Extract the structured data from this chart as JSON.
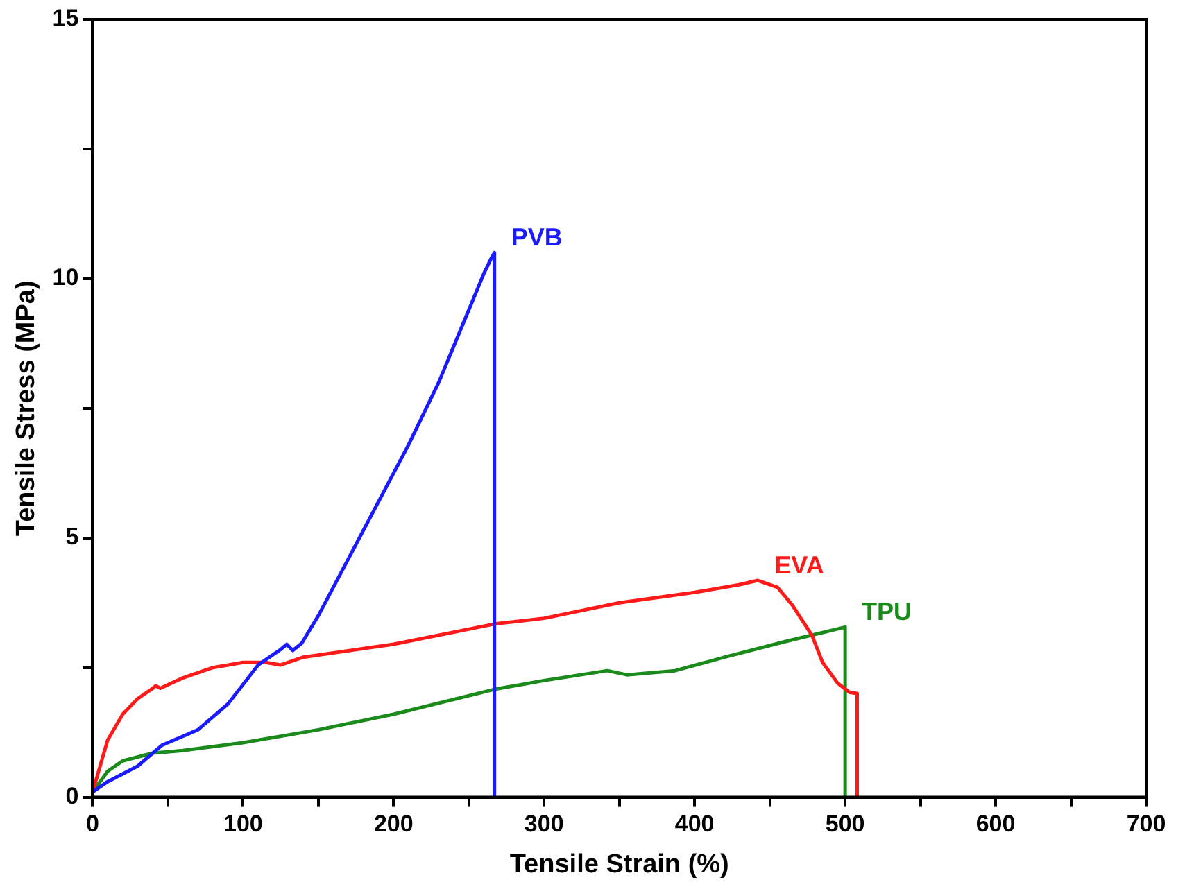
{
  "chart_data": {
    "type": "line",
    "xlabel": "Tensile Strain (%)",
    "ylabel": "Tensile Stress (MPa)",
    "xlim": [
      0,
      700
    ],
    "ylim": [
      0,
      15
    ],
    "xticks": [
      0,
      {
        "value": 50,
        "label": null
      },
      100,
      {
        "value": 150,
        "label": null
      },
      200,
      {
        "value": 250,
        "label": null
      },
      300,
      {
        "value": 350,
        "label": null
      },
      400,
      {
        "value": 450,
        "label": null
      },
      500,
      {
        "value": 550,
        "label": null
      },
      600,
      {
        "value": 650,
        "label": null
      },
      700
    ],
    "yticks": [
      0,
      {
        "value": 2.5,
        "label": null
      },
      5,
      {
        "value": 7.5,
        "label": null
      },
      10,
      {
        "value": 12.5,
        "label": null
      },
      15
    ],
    "grid": false,
    "legend": false,
    "marker": "none",
    "line_style": "solid",
    "series": [
      {
        "name": "PVB",
        "color": "#1a1aff",
        "x": [
          0,
          10,
          30,
          46,
          70,
          90,
          110,
          125,
          129,
          133,
          139,
          150,
          170,
          190,
          210,
          230,
          250,
          260,
          265,
          267,
          267
        ],
        "values": [
          0.1,
          0.3,
          0.6,
          1.0,
          1.3,
          1.8,
          2.55,
          2.85,
          2.95,
          2.83,
          2.97,
          3.5,
          4.6,
          5.7,
          6.8,
          8.0,
          9.4,
          10.1,
          10.4,
          10.5,
          0
        ]
      },
      {
        "name": "EVA",
        "color": "#ff1a1a",
        "x": [
          0,
          5,
          10,
          20,
          30,
          40,
          42,
          45,
          60,
          80,
          100,
          115,
          125,
          140,
          200,
          267,
          300,
          350,
          400,
          430,
          442,
          455,
          465,
          478,
          485,
          495,
          503,
          508,
          508
        ],
        "values": [
          0.1,
          0.6,
          1.1,
          1.6,
          1.9,
          2.1,
          2.15,
          2.1,
          2.3,
          2.5,
          2.6,
          2.6,
          2.55,
          2.7,
          2.95,
          3.34,
          3.45,
          3.75,
          3.95,
          4.1,
          4.18,
          4.05,
          3.7,
          3.12,
          2.6,
          2.2,
          2.02,
          2.0,
          0
        ]
      },
      {
        "name": "TPU",
        "color": "#1a8a1a",
        "x": [
          0,
          10,
          20,
          40,
          60,
          100,
          150,
          200,
          267,
          300,
          342,
          355,
          387,
          420,
          460,
          500,
          500
        ],
        "values": [
          0.1,
          0.5,
          0.7,
          0.85,
          0.9,
          1.05,
          1.3,
          1.6,
          2.08,
          2.25,
          2.44,
          2.36,
          2.44,
          2.7,
          3.0,
          3.28,
          0
        ]
      }
    ]
  }
}
